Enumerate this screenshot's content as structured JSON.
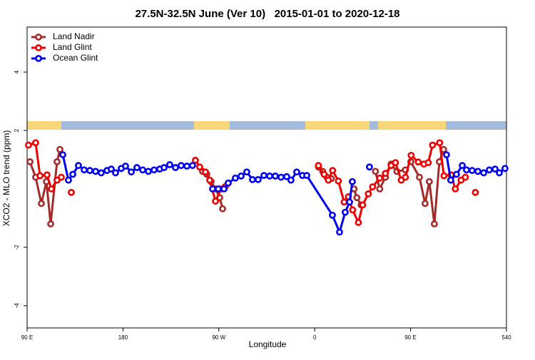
{
  "chart_data": {
    "type": "line",
    "title": "27.5N-32.5N June (Ver 10)   2015-01-01 to 2020-12-18",
    "xlabel": "Longitude",
    "ylabel": "XCO2 - MLO trend (ppm)",
    "xlim": [
      90,
      540
    ],
    "ylim": [
      -4.76,
      5.54
    ],
    "xticks": [
      {
        "value": 90,
        "label": "90 E"
      },
      180,
      {
        "value": 270,
        "label": "90 W"
      },
      {
        "value": 360,
        "label": "0"
      },
      {
        "value": 450,
        "label": "90 E"
      },
      540
    ],
    "yticks": [
      -4,
      -2,
      2,
      4
    ],
    "legend": "upper left",
    "series": [
      {
        "name": "Land Nadir",
        "color": "#a52a2a",
        "x": [
          92.7,
          98.0,
          103.4,
          108.1,
          112.1,
          118.1,
          120.8,
          null,
          254.7,
          258.7,
          262.7,
          266.8,
          270.8,
          273.5,
          null,
          363.5,
          367.5,
          371.5,
          375.5,
          null,
          396.9,
          399.6,
          403.6,
          null,
          417.0,
          421.0,
          426.4,
          431.7,
          437.1,
          445.1,
          null,
          450.2,
          458.3,
          463.6,
          467.6,
          472.3,
          477.0,
          481.0
        ],
        "values": [
          0.93,
          0.4,
          -0.5,
          0.25,
          -1.2,
          0.93,
          1.35,
          null,
          0.6,
          0.5,
          0.25,
          0,
          -0.3,
          -0.68,
          null,
          0.75,
          0.6,
          0.4,
          0.35,
          null,
          0,
          -0.3,
          -0.55,
          null,
          0.6,
          0,
          0.4,
          0.85,
          0.6,
          0.65,
          null,
          0.93,
          0.4,
          -0.5,
          0.25,
          -1.2,
          0.93,
          1.35
        ]
      },
      {
        "name": "Land Glint",
        "color": "#ee0000",
        "x": [
          91.3,
          98.0,
          102.1,
          108.7,
          112.8,
          118.1,
          122.1,
          null,
          131.5,
          null,
          248.0,
          252.0,
          257.4,
          261.4,
          266.8,
          272.1,
          276.1,
          null,
          363.5,
          368.8,
          372.8,
          376.8,
          382.2,
          387.6,
          391.6,
          395.6,
          401.0,
          405.0,
          410.3,
          414.3,
          421.0,
          426.4,
          431.7,
          435.8,
          441.2,
          445.1,
          450.5,
          457.2,
          462.5,
          466.6,
          470.6,
          477.3,
          481.3,
          488.0,
          492.0,
          497.4,
          501.4,
          null,
          510.8
        ],
        "values": [
          1.5,
          1.58,
          0.45,
          0.48,
          0,
          0.3,
          0.4,
          null,
          -0.12,
          null,
          0.98,
          0.75,
          0.58,
          0.3,
          -0.42,
          0,
          0.08,
          null,
          0.8,
          0.5,
          0.3,
          0.63,
          0.27,
          -0.45,
          -0.27,
          -0.72,
          -1.15,
          -0.55,
          -0.17,
          0.07,
          0.37,
          0.53,
          0.8,
          0.9,
          0.3,
          0.4,
          1.15,
          0.92,
          0.85,
          0.9,
          1.5,
          1.58,
          0.45,
          0.48,
          0,
          0.3,
          0.4,
          null,
          -0.12
        ]
      },
      {
        "name": "Ocean Glint",
        "color": "#0000ee",
        "x": [
          123.5,
          128.8,
          132.9,
          138.2,
          143.6,
          148.9,
          154.3,
          159.6,
          165.0,
          169.0,
          173.0,
          178.4,
          182.4,
          187.8,
          193.1,
          198.5,
          203.8,
          209.2,
          214.5,
          218.6,
          223.9,
          229.3,
          234.6,
          240.0,
          245.3,
          null,
          264.1,
          269.5,
          274.8,
          278.8,
          285.5,
          290.9,
          296.2,
          301.6,
          306.9,
          312.3,
          317.7,
          323.0,
          328.4,
          333.7,
          337.7,
          343.1,
          348.5,
          352.5,
          376.6,
          383.3,
          388.6,
          392.7,
          395.3,
          null,
          411.4,
          null,
          483.7,
          487.7,
          493.1,
          498.5,
          502.5,
          507.8,
          513.2,
          518.6,
          523.9,
          529.3,
          533.3,
          538.6
        ],
        "values": [
          1.17,
          0.3,
          0.5,
          0.8,
          0.65,
          0.63,
          0.6,
          0.55,
          0.63,
          0.68,
          0.55,
          0.7,
          0.78,
          0.58,
          0.73,
          0.65,
          0.6,
          0.65,
          0.68,
          0.73,
          0.83,
          0.73,
          0.8,
          0.78,
          0.8,
          null,
          0,
          0,
          0,
          0.2,
          0.37,
          0.44,
          0.58,
          0.32,
          0.32,
          0.46,
          0.44,
          0.44,
          0.4,
          0.42,
          0.3,
          0.58,
          0.46,
          0.46,
          -0.9,
          -1.48,
          -0.8,
          -0.45,
          0.25,
          null,
          0.75,
          null,
          1.17,
          0.3,
          0.5,
          0.8,
          0.65,
          0.63,
          0.6,
          0.55,
          0.65,
          0.68,
          0.55,
          0.7
        ]
      }
    ]
  }
}
